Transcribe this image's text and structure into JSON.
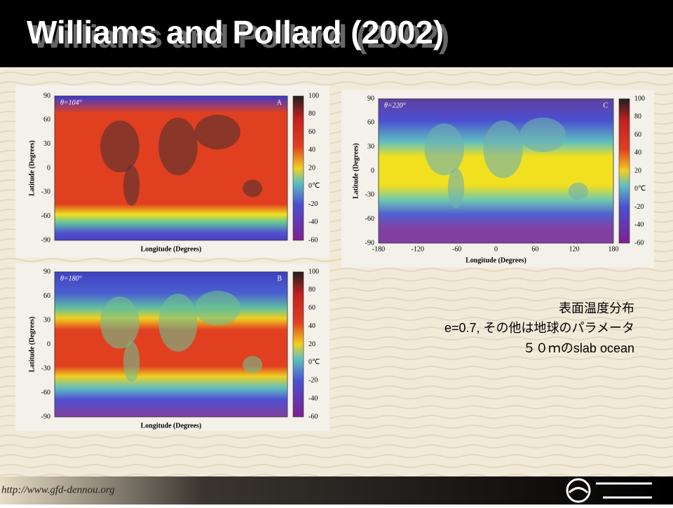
{
  "header": {
    "title": "Williams and Pollard (2002)"
  },
  "panels": [
    {
      "label": "A",
      "theta": "θ=104°",
      "ylabel": "Latitude (Degrees)",
      "xlabel": "Longitude (Degrees)",
      "yticks": [
        90,
        60,
        30,
        0,
        -30,
        -60,
        -90
      ],
      "colorbar_ticks": [
        100,
        80,
        60,
        40,
        20,
        "0℃",
        -20,
        -40,
        -60
      ]
    },
    {
      "label": "B",
      "theta": "θ=180°",
      "ylabel": "Latitude (Degrees)",
      "xlabel": "Longitude (Degrees)",
      "yticks": [
        90,
        60,
        30,
        0,
        -30,
        -60,
        -90
      ],
      "colorbar_ticks": [
        100,
        80,
        60,
        40,
        20,
        "0℃",
        -20,
        -40,
        -60
      ]
    },
    {
      "label": "C",
      "theta": "θ=220°",
      "ylabel": "Latitude (Degrees)",
      "xlabel": "Longitude (Degrees)",
      "yticks": [
        90,
        60,
        30,
        0,
        -30,
        -60,
        -90
      ],
      "xticks": [
        -180,
        -120,
        -60,
        0,
        60,
        120,
        180
      ],
      "colorbar_ticks": [
        100,
        80,
        60,
        40,
        20,
        "0℃",
        -20,
        -40,
        -60
      ]
    }
  ],
  "notes": [
    "表面温度分布",
    "e=0.7, その他は地球のパラメータ",
    "５０ｍのslab ocean"
  ],
  "footer": {
    "url": "http://www.gfd-dennou.org"
  }
}
